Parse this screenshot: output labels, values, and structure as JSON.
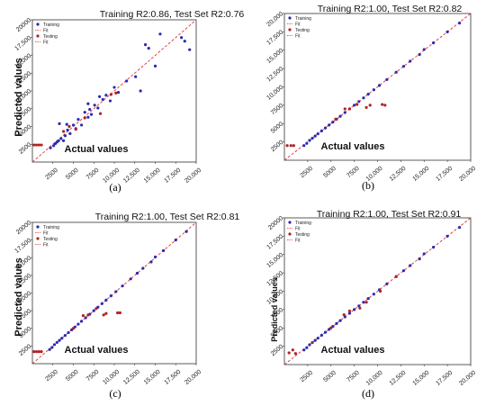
{
  "colors": {
    "training": "#2b2bb0",
    "testing": "#b22222",
    "fit": "#e03030"
  },
  "chart_data": [
    {
      "type": "scatter",
      "caption": "(a)",
      "title": "Training R2:0.86, Test Set R2:0.76",
      "xlabel": "Actual values",
      "ylabel": "Predicted values",
      "xlim": [
        0,
        20000
      ],
      "ylim": [
        0,
        20000
      ],
      "xticks": [
        "2500",
        "5000",
        "7500",
        "10,000",
        "12,500",
        "15,000",
        "17,500",
        "20,000"
      ],
      "yticks": [
        "2500",
        "5000",
        "7500",
        "10,000",
        "12,500",
        "15,000",
        "17,500",
        "20000"
      ],
      "legend": {
        "position": "top-left",
        "entries": [
          "Training",
          "Fit",
          "Testing",
          "Fit"
        ]
      },
      "series": [
        {
          "name": "Training",
          "kind": "points",
          "points": [
            [
              2200,
              2000
            ],
            [
              2600,
              2300
            ],
            [
              2800,
              2600
            ],
            [
              3000,
              2800
            ],
            [
              3200,
              3000
            ],
            [
              3500,
              3300
            ],
            [
              3800,
              3000
            ],
            [
              4000,
              3700
            ],
            [
              4300,
              4500
            ],
            [
              4600,
              4000
            ],
            [
              5000,
              5200
            ],
            [
              5300,
              4700
            ],
            [
              5600,
              6000
            ],
            [
              6000,
              5200
            ],
            [
              6400,
              7000
            ],
            [
              6800,
              6300
            ],
            [
              7200,
              6700
            ],
            [
              7600,
              8000
            ],
            [
              8000,
              7600
            ],
            [
              8200,
              9200
            ],
            [
              8600,
              8800
            ],
            [
              9000,
              9400
            ],
            [
              9500,
              8600
            ],
            [
              10000,
              10500
            ],
            [
              10500,
              9800
            ],
            [
              11500,
              11400
            ],
            [
              12600,
              12000
            ],
            [
              13200,
              10000
            ],
            [
              13800,
              16500
            ],
            [
              14200,
              16000
            ],
            [
              15000,
              13500
            ],
            [
              15600,
              18000
            ],
            [
              18200,
              17500
            ],
            [
              18600,
              17000
            ],
            [
              19200,
              15800
            ],
            [
              3300,
              5400
            ],
            [
              4200,
              5300
            ],
            [
              6800,
              8200
            ],
            [
              7000,
              7400
            ]
          ]
        },
        {
          "name": "Testing",
          "kind": "points",
          "points": [
            [
              200,
              2400
            ],
            [
              500,
              2400
            ],
            [
              800,
              2400
            ],
            [
              1100,
              2400
            ],
            [
              3800,
              4300
            ],
            [
              4500,
              5000
            ],
            [
              5300,
              4600
            ],
            [
              6400,
              6200
            ],
            [
              8300,
              6800
            ],
            [
              9600,
              9500
            ],
            [
              10200,
              9700
            ]
          ]
        },
        {
          "name": "Fit",
          "kind": "line",
          "points": [
            [
              0,
              0
            ],
            [
              20000,
              20000
            ]
          ]
        }
      ]
    },
    {
      "type": "scatter",
      "caption": "(b)",
      "title": "Training R2:1.00, Test Set R2:0.82",
      "xlabel": "Actual values",
      "ylabel": "",
      "xlim": [
        0,
        20000
      ],
      "ylim": [
        0,
        20000
      ],
      "xticks": [
        "2500",
        "5000",
        "7500",
        "10,000",
        "12,500",
        "15,000",
        "17,500",
        "20,000"
      ],
      "yticks": [
        "2500",
        "5000",
        "7500",
        "10,000",
        "12,500",
        "15,000",
        "17,500",
        "20,000"
      ],
      "legend": {
        "position": "top-left",
        "entries": [
          "Training",
          "Fit",
          "Testing",
          "Fit"
        ]
      },
      "series": [
        {
          "name": "Training",
          "kind": "points",
          "points": [
            [
              2100,
              2000
            ],
            [
              2400,
              2300
            ],
            [
              2700,
              2700
            ],
            [
              3000,
              3000
            ],
            [
              3300,
              3300
            ],
            [
              3600,
              3600
            ],
            [
              4000,
              4000
            ],
            [
              4400,
              4400
            ],
            [
              4800,
              4800
            ],
            [
              5200,
              5200
            ],
            [
              5600,
              5600
            ],
            [
              6000,
              6000
            ],
            [
              6500,
              6500
            ],
            [
              7000,
              7000
            ],
            [
              7500,
              7500
            ],
            [
              8000,
              8000
            ],
            [
              8500,
              8500
            ],
            [
              9000,
              9000
            ],
            [
              9600,
              9600
            ],
            [
              10200,
              10200
            ],
            [
              11000,
              11000
            ],
            [
              12000,
              12000
            ],
            [
              12800,
              12800
            ],
            [
              13500,
              13500
            ],
            [
              14500,
              14400
            ],
            [
              15000,
              15100
            ],
            [
              16000,
              16000
            ],
            [
              17500,
              17500
            ],
            [
              18800,
              18700
            ]
          ]
        },
        {
          "name": "Testing",
          "kind": "points",
          "points": [
            [
              300,
              2000
            ],
            [
              700,
              2000
            ],
            [
              1000,
              2000
            ],
            [
              5500,
              5600
            ],
            [
              6500,
              7000
            ],
            [
              7000,
              7000
            ],
            [
              7800,
              7600
            ],
            [
              8800,
              7200
            ],
            [
              9200,
              7500
            ],
            [
              10500,
              7600
            ],
            [
              10800,
              7500
            ]
          ]
        },
        {
          "name": "Fit",
          "kind": "line",
          "points": [
            [
              0,
              0
            ],
            [
              20000,
              20000
            ]
          ]
        }
      ]
    },
    {
      "type": "scatter",
      "caption": "(c)",
      "title": "Training R2:1.00, Test Set R2:0.81",
      "xlabel": "Actual values",
      "ylabel": "Predicted values",
      "xlim": [
        0,
        20000
      ],
      "ylim": [
        0,
        20000
      ],
      "xticks": [
        "2500",
        "5000",
        "7500",
        "10,000",
        "12,500",
        "15,000",
        "17,500",
        "20,000"
      ],
      "yticks": [
        "2500",
        "5000",
        "7500",
        "10,000",
        "12,500",
        "15,000",
        "17,500",
        "20000"
      ],
      "legend": {
        "position": "top-left",
        "entries": [
          "Training",
          "Fit",
          "Testing",
          "Fit"
        ]
      },
      "series": [
        {
          "name": "Training",
          "kind": "points",
          "points": [
            [
              2100,
              2000
            ],
            [
              2400,
              2300
            ],
            [
              2700,
              2700
            ],
            [
              3000,
              3000
            ],
            [
              3300,
              3300
            ],
            [
              3600,
              3600
            ],
            [
              4000,
              4000
            ],
            [
              4400,
              4400
            ],
            [
              4800,
              4800
            ],
            [
              5200,
              5200
            ],
            [
              5600,
              5600
            ],
            [
              6000,
              6000
            ],
            [
              6500,
              6500
            ],
            [
              7000,
              7000
            ],
            [
              7500,
              7500
            ],
            [
              8000,
              8000
            ],
            [
              8500,
              8500
            ],
            [
              9000,
              9000
            ],
            [
              9600,
              9600
            ],
            [
              10200,
              10200
            ],
            [
              11000,
              11000
            ],
            [
              12000,
              12000
            ],
            [
              12800,
              12800
            ],
            [
              13500,
              13500
            ],
            [
              14500,
              14400
            ],
            [
              15000,
              15100
            ],
            [
              16000,
              16000
            ],
            [
              17500,
              17500
            ],
            [
              18800,
              18700
            ]
          ]
        },
        {
          "name": "Testing",
          "kind": "points",
          "points": [
            [
              200,
              1700
            ],
            [
              500,
              1700
            ],
            [
              800,
              1700
            ],
            [
              1100,
              1700
            ],
            [
              5000,
              5000
            ],
            [
              6200,
              6800
            ],
            [
              6800,
              6900
            ],
            [
              7800,
              7800
            ],
            [
              8700,
              6900
            ],
            [
              9000,
              7100
            ],
            [
              10400,
              7200
            ],
            [
              10700,
              7200
            ]
          ]
        },
        {
          "name": "Fit",
          "kind": "line",
          "points": [
            [
              0,
              0
            ],
            [
              20000,
              20000
            ]
          ]
        }
      ]
    },
    {
      "type": "scatter",
      "caption": "(d)",
      "title": "Training R2:1.00, Test Set R2:0.91",
      "xlabel": "Actual values",
      "ylabel": "Predicted values",
      "xlim": [
        0,
        20000
      ],
      "ylim": [
        0,
        20000
      ],
      "xticks": [
        "2500",
        "5000",
        "7500",
        "10,000",
        "12,500",
        "15,000",
        "17,500",
        "20,000"
      ],
      "yticks": [
        "2500",
        "5000",
        "7500",
        "10,000",
        "12,500",
        "15,000",
        "17,500",
        "20000"
      ],
      "legend": {
        "position": "top-left",
        "entries": [
          "Training",
          "Fit",
          "Testing",
          "Fit"
        ]
      },
      "series": [
        {
          "name": "Training",
          "kind": "points",
          "points": [
            [
              2100,
              2000
            ],
            [
              2400,
              2300
            ],
            [
              2700,
              2700
            ],
            [
              3000,
              3000
            ],
            [
              3300,
              3300
            ],
            [
              3600,
              3600
            ],
            [
              4000,
              4000
            ],
            [
              4400,
              4400
            ],
            [
              4800,
              4800
            ],
            [
              5200,
              5200
            ],
            [
              5600,
              5600
            ],
            [
              6000,
              6000
            ],
            [
              6500,
              6500
            ],
            [
              7000,
              7000
            ],
            [
              7500,
              7500
            ],
            [
              8000,
              8000
            ],
            [
              8500,
              8500
            ],
            [
              9000,
              9000
            ],
            [
              9600,
              9600
            ],
            [
              10200,
              10200
            ],
            [
              11000,
              11000
            ],
            [
              12000,
              12000
            ],
            [
              12800,
              12800
            ],
            [
              13500,
              13500
            ],
            [
              14500,
              14400
            ],
            [
              15000,
              15100
            ],
            [
              16000,
              16000
            ],
            [
              17500,
              17500
            ],
            [
              18800,
              18700
            ]
          ]
        },
        {
          "name": "Testing",
          "kind": "points",
          "points": [
            [
              500,
              1600
            ],
            [
              900,
              2000
            ],
            [
              1200,
              1500
            ],
            [
              3000,
              3000
            ],
            [
              5000,
              5000
            ],
            [
              6400,
              6800
            ],
            [
              7000,
              7300
            ],
            [
              8100,
              7700
            ],
            [
              8800,
              8500
            ],
            [
              10300,
              10000
            ],
            [
              12000,
              12000
            ]
          ]
        },
        {
          "name": "Fit",
          "kind": "line",
          "points": [
            [
              0,
              0
            ],
            [
              20000,
              20000
            ]
          ]
        }
      ]
    }
  ]
}
